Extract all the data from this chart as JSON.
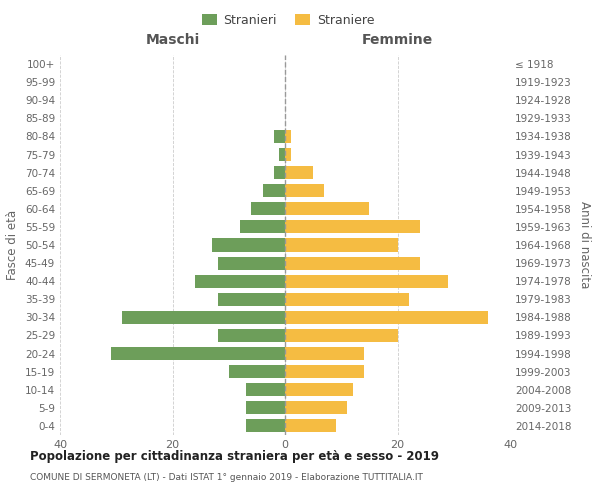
{
  "age_groups": [
    "0-4",
    "5-9",
    "10-14",
    "15-19",
    "20-24",
    "25-29",
    "30-34",
    "35-39",
    "40-44",
    "45-49",
    "50-54",
    "55-59",
    "60-64",
    "65-69",
    "70-74",
    "75-79",
    "80-84",
    "85-89",
    "90-94",
    "95-99",
    "100+"
  ],
  "birth_years": [
    "2014-2018",
    "2009-2013",
    "2004-2008",
    "1999-2003",
    "1994-1998",
    "1989-1993",
    "1984-1988",
    "1979-1983",
    "1974-1978",
    "1969-1973",
    "1964-1968",
    "1959-1963",
    "1954-1958",
    "1949-1953",
    "1944-1948",
    "1939-1943",
    "1934-1938",
    "1929-1933",
    "1924-1928",
    "1919-1923",
    "≤ 1918"
  ],
  "maschi": [
    7,
    7,
    7,
    10,
    31,
    12,
    29,
    12,
    16,
    12,
    13,
    8,
    6,
    4,
    2,
    1,
    2,
    0,
    0,
    0,
    0
  ],
  "femmine": [
    9,
    11,
    12,
    14,
    14,
    20,
    36,
    22,
    29,
    24,
    20,
    24,
    15,
    7,
    5,
    1,
    1,
    0,
    0,
    0,
    0
  ],
  "maschi_color": "#6d9e5a",
  "femmine_color": "#f5bc42",
  "dashed_line_color": "#999999",
  "grid_color": "#cccccc",
  "bg_color": "#ffffff",
  "title": "Popolazione per cittadinanza straniera per età e sesso - 2019",
  "subtitle": "COMUNE DI SERMONETA (LT) - Dati ISTAT 1° gennaio 2019 - Elaborazione TUTTITALIA.IT",
  "xlabel_left": "Maschi",
  "xlabel_right": "Femmine",
  "ylabel_left": "Fasce di età",
  "ylabel_right": "Anni di nascita",
  "legend_maschi": "Stranieri",
  "legend_femmine": "Straniere",
  "xlim": 40
}
